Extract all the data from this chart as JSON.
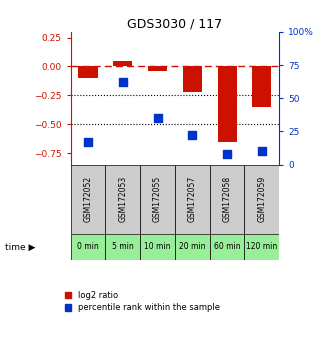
{
  "title": "GDS3030 / 117",
  "samples": [
    "GSM172052",
    "GSM172053",
    "GSM172055",
    "GSM172057",
    "GSM172058",
    "GSM172059"
  ],
  "time_labels": [
    "0 min",
    "5 min",
    "10 min",
    "20 min",
    "60 min",
    "120 min"
  ],
  "log2_ratio": [
    -0.1,
    0.05,
    -0.04,
    -0.22,
    -0.65,
    -0.35
  ],
  "percentile_rank": [
    17,
    62,
    35,
    22,
    8,
    10
  ],
  "ylim_left": [
    -0.85,
    0.3
  ],
  "ylim_right": [
    0,
    100
  ],
  "yticks_left": [
    0.25,
    0,
    -0.25,
    -0.5,
    -0.75
  ],
  "yticks_right": [
    100,
    75,
    50,
    25,
    0
  ],
  "hline_y": 0,
  "dotted_lines": [
    -0.25,
    -0.5
  ],
  "bar_color": "#cc1100",
  "dot_color": "#0033cc",
  "bar_width": 0.55,
  "dot_size": 40,
  "legend_labels": [
    "log2 ratio",
    "percentile rank within the sample"
  ],
  "time_row_color": "#99ee99",
  "sample_row_color": "#cccccc",
  "background_color": "#ffffff"
}
